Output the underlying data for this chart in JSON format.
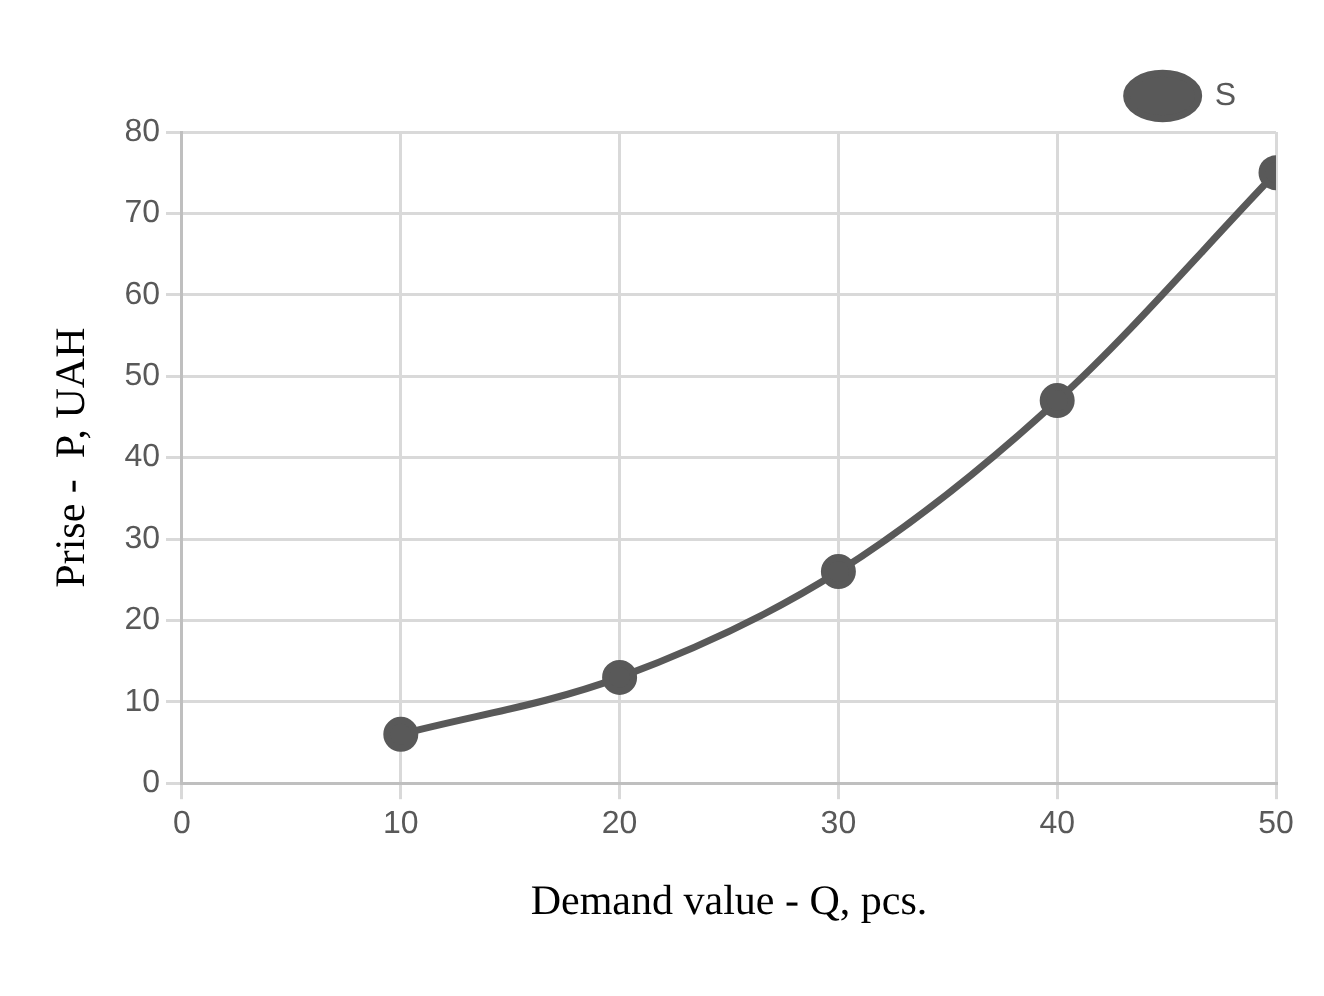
{
  "chart_data": {
    "type": "line",
    "xlabel": "Demand value - Q, pcs.",
    "ylabel": "Prise -  P, UAH",
    "x": [
      10,
      20,
      30,
      40,
      50
    ],
    "series": [
      {
        "name": "S",
        "color": "#595959",
        "values": [
          6,
          13,
          26,
          47,
          75
        ]
      }
    ],
    "xlim": [
      0,
      50
    ],
    "xticks": [
      0,
      10,
      20,
      30,
      40,
      50
    ],
    "ylim": [
      0,
      80
    ],
    "yticks": [
      0,
      10,
      20,
      30,
      40,
      50,
      60,
      70,
      80
    ],
    "grid": true,
    "legend": "top right",
    "marker": "circle",
    "line_style": "solid"
  }
}
